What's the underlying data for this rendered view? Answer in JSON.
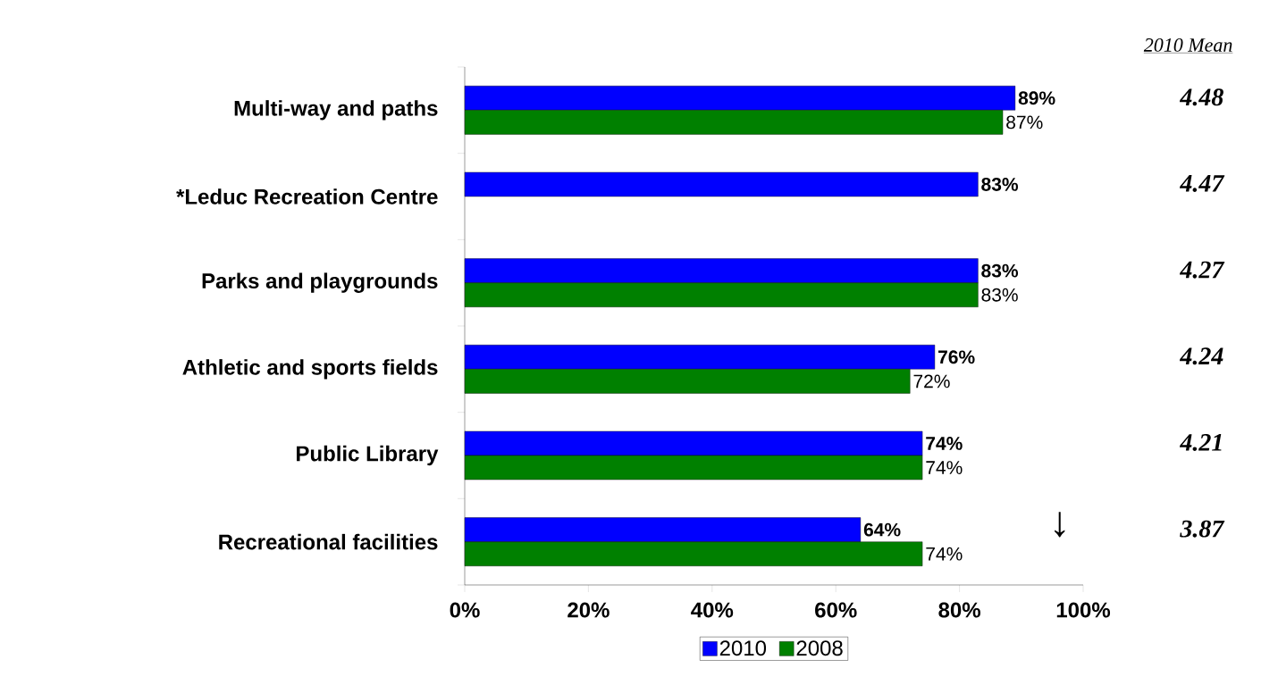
{
  "chart_data": {
    "type": "bar",
    "orientation": "horizontal",
    "categories": [
      "Multi-way and paths",
      "*Leduc Recreation Centre",
      "Parks and playgrounds",
      "Athletic and sports fields",
      "Public Library",
      "Recreational facilities"
    ],
    "series": [
      {
        "name": "2010",
        "color": "#0000ff",
        "values": [
          89,
          83,
          83,
          76,
          74,
          64
        ],
        "value_labels": [
          "89%",
          "83%",
          "83%",
          "76%",
          "74%",
          "64%"
        ]
      },
      {
        "name": "2008",
        "color": "#008000",
        "values": [
          87,
          null,
          83,
          72,
          74,
          74
        ],
        "value_labels": [
          "87%",
          null,
          "83%",
          "72%",
          "74%",
          "74%"
        ]
      }
    ],
    "xlim": [
      0,
      100
    ],
    "xticks": [
      {
        "value": 0,
        "label": "0%"
      },
      {
        "value": 20,
        "label": "20%"
      },
      {
        "value": 40,
        "label": "40%"
      },
      {
        "value": 60,
        "label": "60%"
      },
      {
        "value": 80,
        "label": "80%"
      },
      {
        "value": 100,
        "label": "100%"
      }
    ],
    "legend": "bottom",
    "annotations": [
      "2010 Mean",
      "4.48",
      "4.47",
      "4.27",
      "4.24",
      "4.21",
      "3.87",
      "↓"
    ]
  }
}
